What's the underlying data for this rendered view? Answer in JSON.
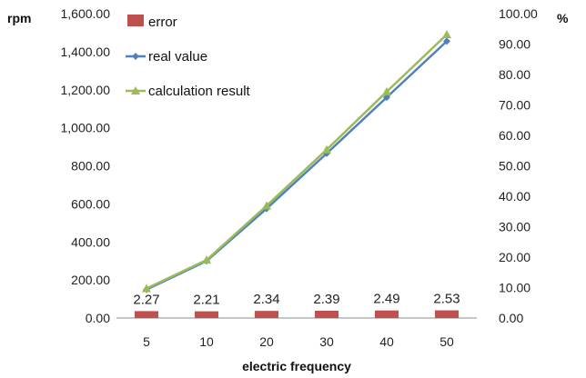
{
  "chart_data": {
    "type": "line",
    "categories": [
      "5",
      "10",
      "20",
      "30",
      "40",
      "50"
    ],
    "xlabel": "electric frequency",
    "ylabel_left": "rpm",
    "ylabel_right": "%",
    "ylim_left": [
      0,
      1600
    ],
    "ylim_right": [
      0,
      100
    ],
    "left_ticks": [
      "0.00",
      "200.00",
      "400.00",
      "600.00",
      "800.00",
      "1,000.00",
      "1,200.00",
      "1,400.00",
      "1,600.00"
    ],
    "right_ticks": [
      "0.00",
      "10.00",
      "20.00",
      "30.00",
      "40.00",
      "50.00",
      "60.00",
      "70.00",
      "80.00",
      "90.00",
      "100.00"
    ],
    "legend_position": "top-left",
    "grid": false,
    "series": [
      {
        "name": "error",
        "kind": "bar",
        "axis": "right",
        "color": "#C0504D",
        "values": [
          2.27,
          2.21,
          2.34,
          2.39,
          2.49,
          2.53
        ],
        "labels": [
          "2.27",
          "2.21",
          "2.34",
          "2.39",
          "2.49",
          "2.53"
        ]
      },
      {
        "name": "real value",
        "kind": "line",
        "marker": "diamond",
        "axis": "left",
        "color": "#4F81BD",
        "values": [
          150,
          300,
          575,
          865,
          1160,
          1455
        ]
      },
      {
        "name": "calculation result",
        "kind": "line",
        "marker": "triangle",
        "axis": "left",
        "color": "#9BBB59",
        "values": [
          155,
          305,
          590,
          885,
          1190,
          1490
        ]
      }
    ]
  }
}
